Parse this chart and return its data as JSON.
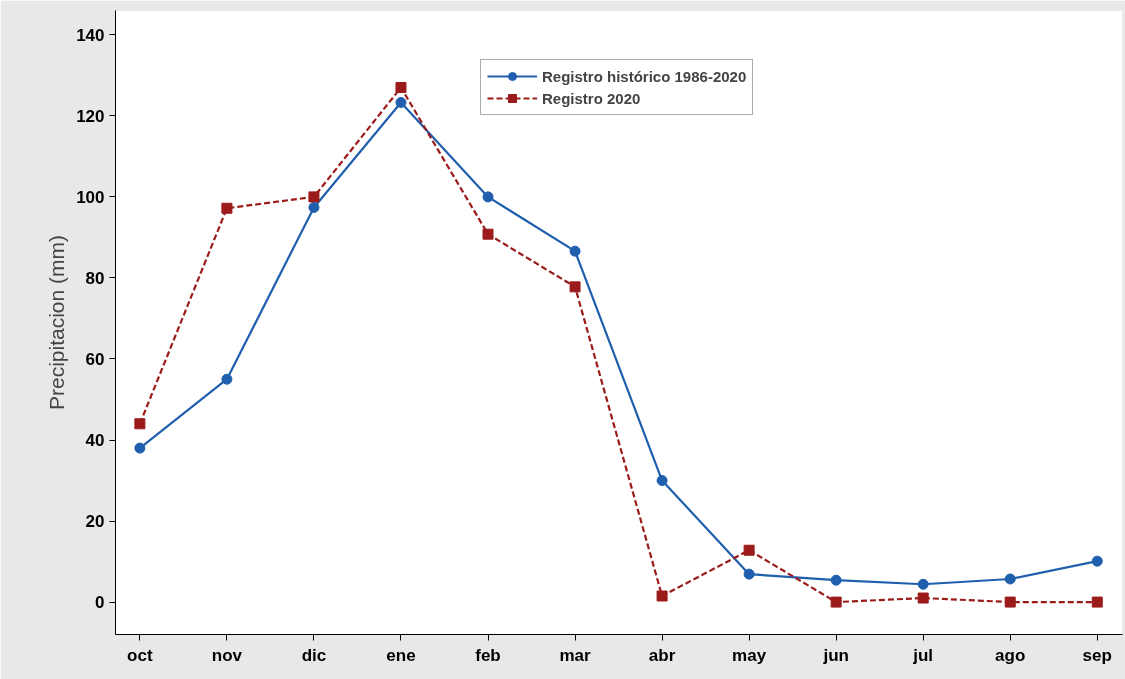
{
  "chart_data": {
    "type": "line",
    "ylabel": "Precipitacion (mm)",
    "categories": [
      "oct",
      "nov",
      "dic",
      "ene",
      "feb",
      "mar",
      "abr",
      "may",
      "jun",
      "jul",
      "ago",
      "sep"
    ],
    "series": [
      {
        "name": "Registro histórico 1986-2020",
        "color": "#1f5fad",
        "marker": "circle",
        "line_style": "solid",
        "values": [
          38,
          55,
          97.4,
          123.3,
          100,
          86.6,
          30,
          6.9,
          5.4,
          4.4,
          5.7,
          10.1
        ]
      },
      {
        "name": "Registro 2020",
        "color": "#9b1b1b",
        "marker": "square",
        "line_style": "dashed",
        "values": [
          44,
          97.2,
          100,
          127,
          90.8,
          77.8,
          1.5,
          12.8,
          0,
          1,
          0,
          0
        ]
      }
    ],
    "ylim": [
      -8,
      146
    ],
    "yticks": [
      0,
      20,
      40,
      60,
      80,
      100,
      120,
      140
    ],
    "grid": false,
    "legend": "top right"
  }
}
